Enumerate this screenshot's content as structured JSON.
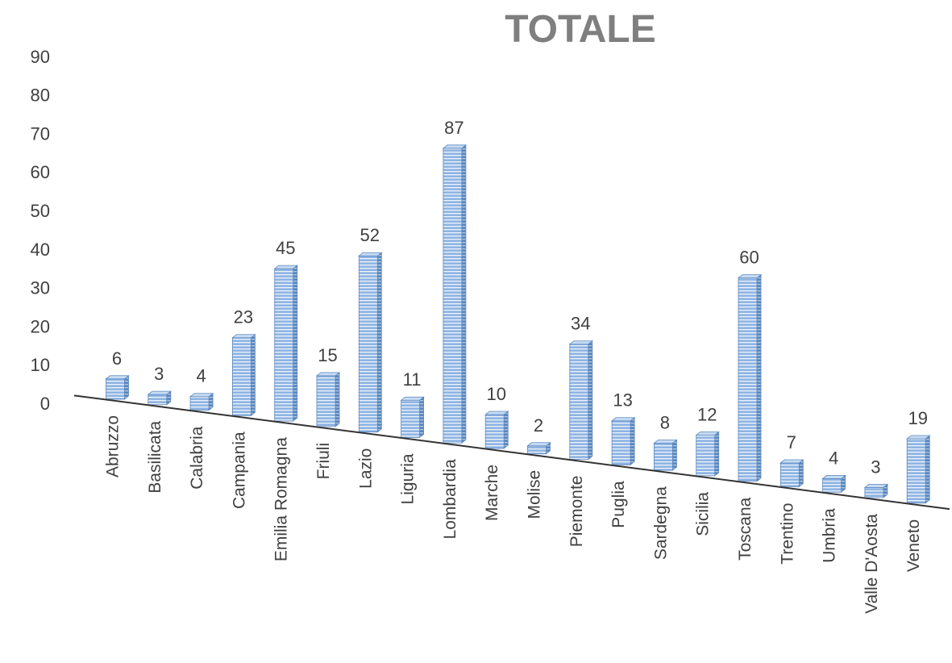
{
  "chart_data": {
    "type": "bar",
    "title": "TOTALE",
    "xlabel": "",
    "ylabel": "",
    "ylim": [
      0,
      90
    ],
    "yticks": [
      0,
      10,
      20,
      30,
      40,
      50,
      60,
      70,
      80,
      90
    ],
    "grid": false,
    "legend": "none",
    "categories": [
      "Abruzzo",
      "Basilicata",
      "Calabria",
      "Campania",
      "Emilia Romagna",
      "Friuli",
      "Lazio",
      "Liguria",
      "Lombardia",
      "Marche",
      "Molise",
      "Piemonte",
      "Puglia",
      "Sardegna",
      "Sicilia",
      "Toscana",
      "Trentino",
      "Umbria",
      "Valle D'Aosta",
      "Veneto"
    ],
    "series": [
      {
        "values": [
          6,
          3,
          4,
          23,
          45,
          15,
          52,
          11,
          87,
          10,
          2,
          34,
          13,
          8,
          12,
          60,
          7,
          4,
          3,
          19
        ]
      }
    ],
    "colors": {
      "bar_front": "#8eb4e3",
      "bar_side": "#5b86bd",
      "bar_top": "#c6dbf3",
      "stripe": "#ffffff",
      "axis": "#333333",
      "title": "#7f7f7f",
      "text": "#404040"
    }
  }
}
